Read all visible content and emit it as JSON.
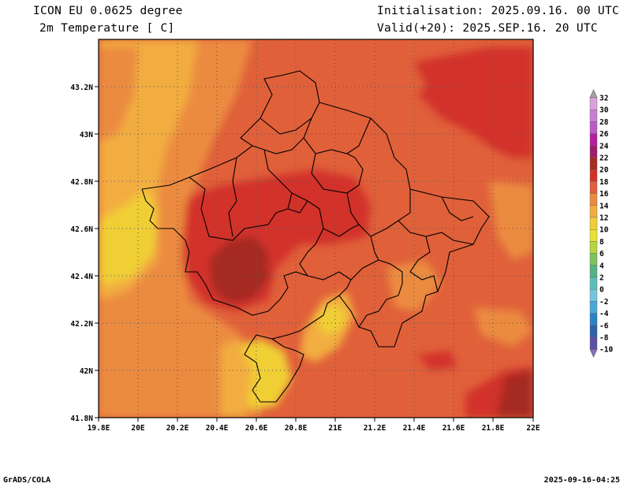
{
  "header": {
    "model": "ICON EU 0.0625 degree",
    "variable": "2m Temperature [ C]",
    "initialisation": "Initialisation: 2025.09.16. 00 UTC",
    "valid": "Valid(+20): 2025.SEP.16. 20 UTC"
  },
  "footer": {
    "software": "GrADS/COLA",
    "timestamp": "2025-09-16-04:25"
  },
  "map": {
    "lon_ticks": [
      "19.8E",
      "20E",
      "20.2E",
      "20.4E",
      "20.6E",
      "20.8E",
      "21E",
      "21.2E",
      "21.4E",
      "21.6E",
      "21.8E",
      "22E"
    ],
    "lat_ticks": [
      "43.2N",
      "43N",
      "42.8N",
      "42.6N",
      "42.4N",
      "42.2N",
      "42N",
      "41.8N"
    ],
    "lon_range": [
      19.8,
      22.0
    ],
    "lat_range": [
      41.8,
      43.4
    ],
    "grid": "dotted"
  },
  "colorbar": {
    "labels": [
      "32",
      "30",
      "28",
      "26",
      "24",
      "22",
      "20",
      "18",
      "16",
      "14",
      "12",
      "10",
      "8",
      "6",
      "4",
      "2",
      "0",
      "-2",
      "-4",
      "-6",
      "-8",
      "-10"
    ],
    "colors": [
      "#a3a3a3",
      "#d9a0d9",
      "#c77fd0",
      "#b95bc2",
      "#b21fa0",
      "#a01e6b",
      "#a52a22",
      "#d2312a",
      "#e0603a",
      "#eb8b3f",
      "#f2ad40",
      "#f0cf36",
      "#e8e232",
      "#b9d443",
      "#7fc35a",
      "#55b183",
      "#5bbfb5",
      "#76c6dc",
      "#4aa7d9",
      "#2b82c6",
      "#2d62a8",
      "#5b52a4",
      "#8a6fc2"
    ]
  },
  "legend_items": {
    "temperature_zones": [
      "12",
      "14",
      "16",
      "18",
      "20",
      "22"
    ]
  }
}
